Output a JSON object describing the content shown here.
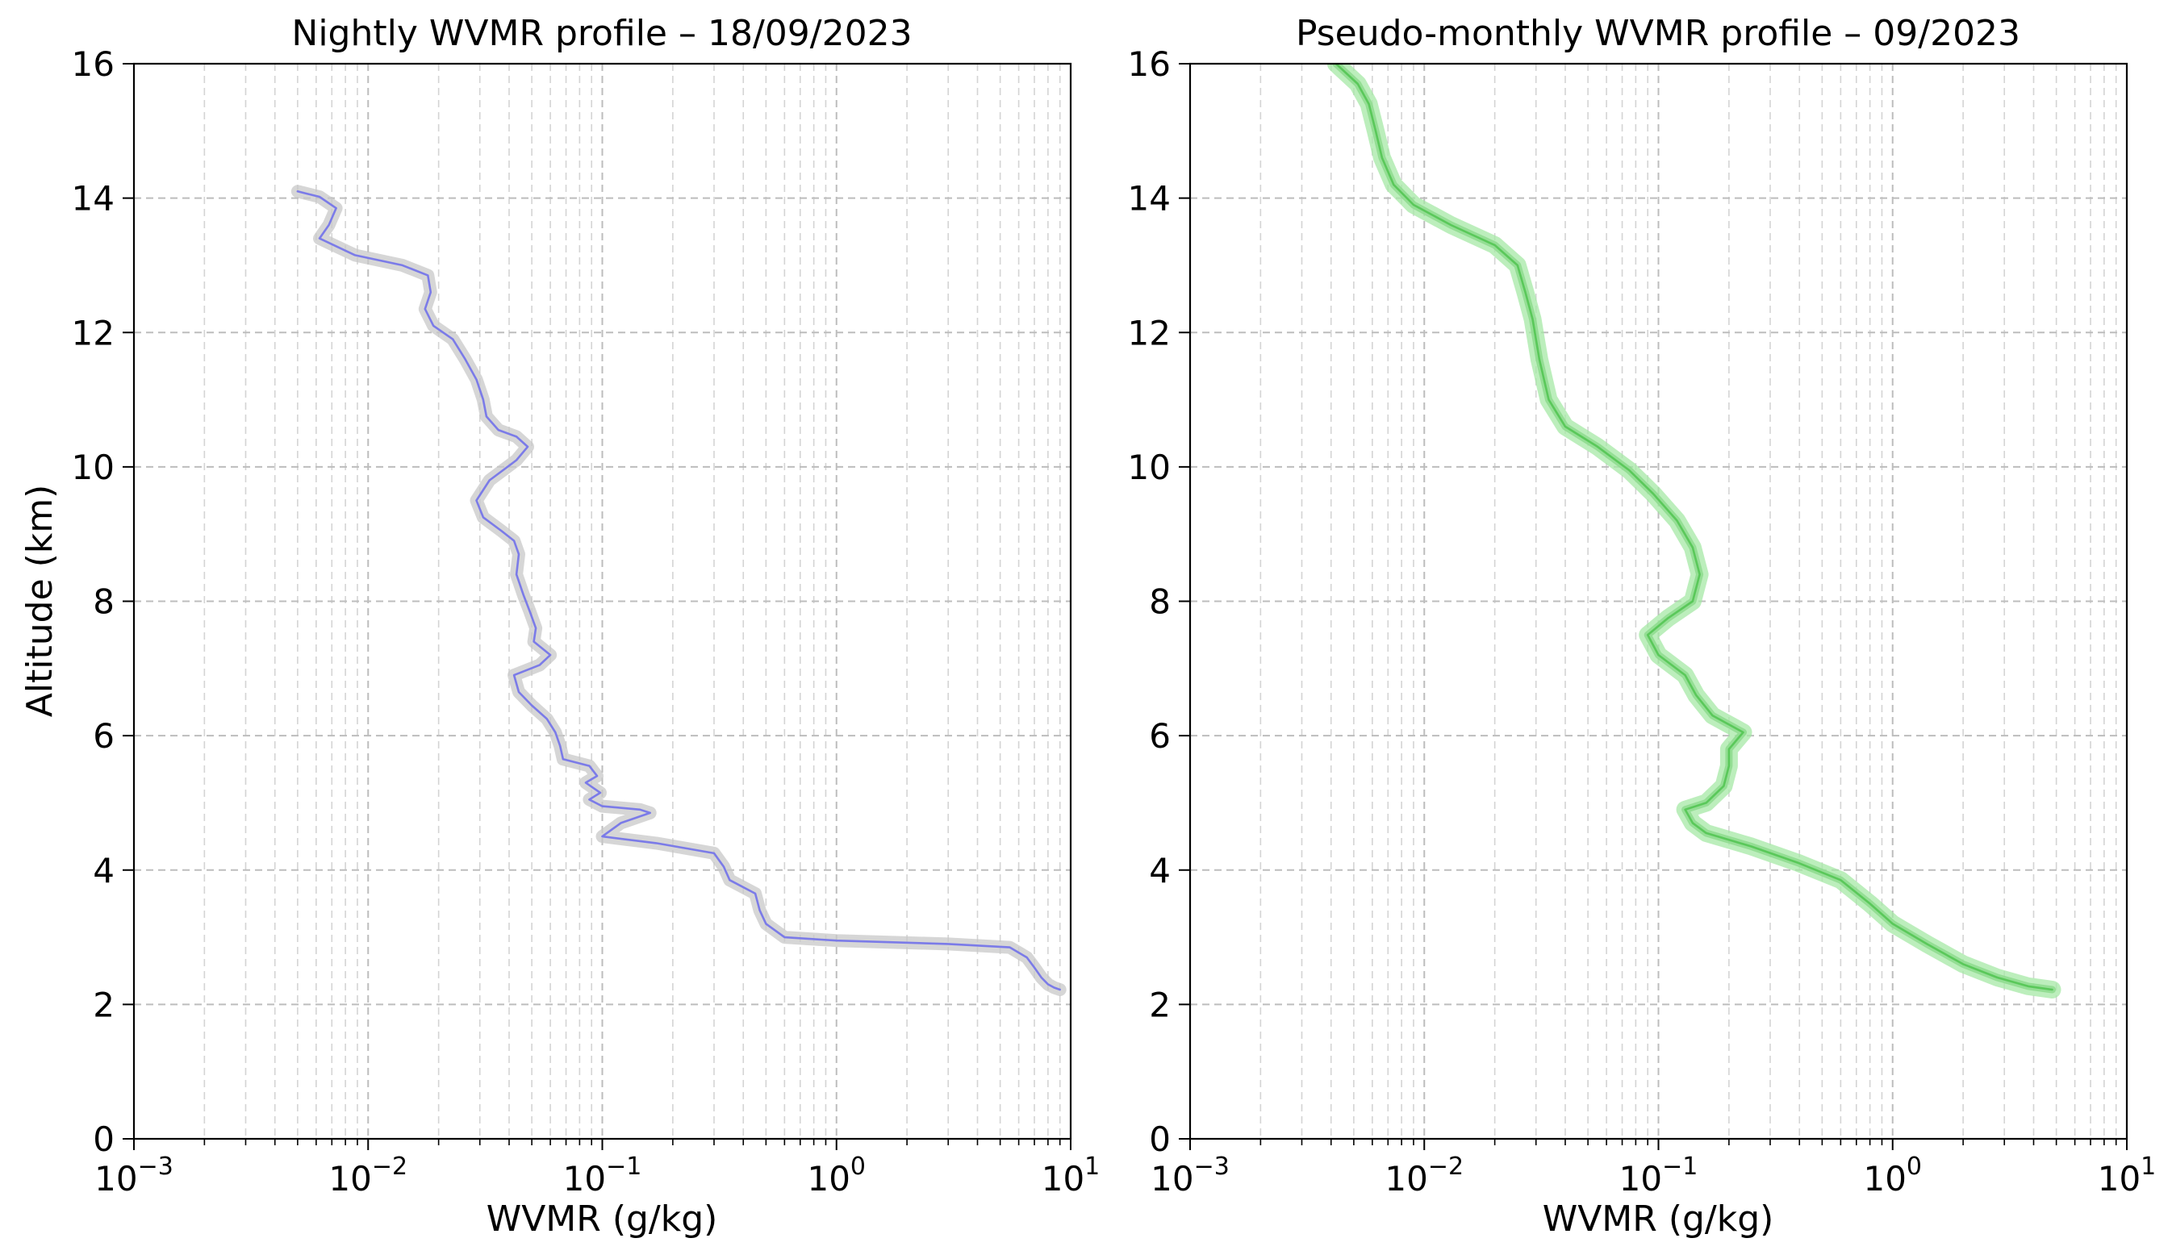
{
  "chart_data": [
    {
      "type": "line",
      "title": "Nightly WVMR profile – 18/09/2023",
      "xlabel": "WVMR (g/kg)",
      "ylabel": "Altitude (km)",
      "xscale": "log",
      "xlim": [
        0.001,
        10
      ],
      "ylim": [
        0,
        16
      ],
      "grid": true,
      "line_color": "#7b7be8",
      "band_color": "#c8c8c8",
      "x_ticks": [
        {
          "base": "10",
          "exp": "−3",
          "value": 0.001
        },
        {
          "base": "10",
          "exp": "−2",
          "value": 0.01
        },
        {
          "base": "10",
          "exp": "−1",
          "value": 0.1
        },
        {
          "base": "10",
          "exp": "0",
          "value": 1
        },
        {
          "base": "10",
          "exp": "1",
          "value": 10
        }
      ],
      "y_ticks": [
        "0",
        "2",
        "4",
        "6",
        "8",
        "10",
        "12",
        "14",
        "16"
      ],
      "series": [
        {
          "name": "nightly",
          "points": [
            [
              0.005,
              14.1
            ],
            [
              0.0062,
              14.02
            ],
            [
              0.0073,
              13.85
            ],
            [
              0.0068,
              13.6
            ],
            [
              0.0062,
              13.4
            ],
            [
              0.0088,
              13.15
            ],
            [
              0.014,
              13.0
            ],
            [
              0.018,
              12.85
            ],
            [
              0.0185,
              12.6
            ],
            [
              0.0175,
              12.35
            ],
            [
              0.019,
              12.1
            ],
            [
              0.023,
              11.9
            ],
            [
              0.026,
              11.6
            ],
            [
              0.029,
              11.3
            ],
            [
              0.031,
              11.0
            ],
            [
              0.032,
              10.75
            ],
            [
              0.036,
              10.55
            ],
            [
              0.043,
              10.45
            ],
            [
              0.048,
              10.3
            ],
            [
              0.043,
              10.1
            ],
            [
              0.033,
              9.8
            ],
            [
              0.029,
              9.5
            ],
            [
              0.031,
              9.25
            ],
            [
              0.037,
              9.05
            ],
            [
              0.042,
              8.9
            ],
            [
              0.044,
              8.7
            ],
            [
              0.043,
              8.4
            ],
            [
              0.046,
              8.1
            ],
            [
              0.049,
              7.85
            ],
            [
              0.052,
              7.6
            ],
            [
              0.051,
              7.4
            ],
            [
              0.06,
              7.2
            ],
            [
              0.054,
              7.05
            ],
            [
              0.042,
              6.9
            ],
            [
              0.044,
              6.65
            ],
            [
              0.05,
              6.45
            ],
            [
              0.058,
              6.25
            ],
            [
              0.063,
              6.05
            ],
            [
              0.066,
              5.85
            ],
            [
              0.068,
              5.65
            ],
            [
              0.088,
              5.55
            ],
            [
              0.095,
              5.4
            ],
            [
              0.085,
              5.3
            ],
            [
              0.098,
              5.15
            ],
            [
              0.088,
              5.05
            ],
            [
              0.1,
              4.95
            ],
            [
              0.145,
              4.9
            ],
            [
              0.16,
              4.85
            ],
            [
              0.12,
              4.7
            ],
            [
              0.1,
              4.5
            ],
            [
              0.17,
              4.4
            ],
            [
              0.3,
              4.25
            ],
            [
              0.33,
              4.05
            ],
            [
              0.35,
              3.85
            ],
            [
              0.45,
              3.65
            ],
            [
              0.47,
              3.4
            ],
            [
              0.5,
              3.2
            ],
            [
              0.6,
              3.0
            ],
            [
              1.0,
              2.95
            ],
            [
              3.0,
              2.9
            ],
            [
              5.5,
              2.85
            ],
            [
              6.5,
              2.7
            ],
            [
              7.0,
              2.55
            ],
            [
              7.5,
              2.4
            ],
            [
              8.0,
              2.3
            ],
            [
              8.5,
              2.25
            ],
            [
              9.0,
              2.22
            ]
          ]
        }
      ]
    },
    {
      "type": "line",
      "title": "Pseudo-monthly WVMR profile – 09/2023",
      "xlabel": "WVMR (g/kg)",
      "ylabel": "",
      "xscale": "log",
      "xlim": [
        0.001,
        10
      ],
      "ylim": [
        0,
        16
      ],
      "grid": true,
      "line_color": "#5ac85a",
      "band_color": "#a6e8a6",
      "x_ticks": [
        {
          "base": "10",
          "exp": "−3",
          "value": 0.001
        },
        {
          "base": "10",
          "exp": "−2",
          "value": 0.01
        },
        {
          "base": "10",
          "exp": "−1",
          "value": 0.1
        },
        {
          "base": "10",
          "exp": "0",
          "value": 1
        },
        {
          "base": "10",
          "exp": "1",
          "value": 10
        }
      ],
      "y_ticks": [
        "0",
        "2",
        "4",
        "6",
        "8",
        "10",
        "12",
        "14",
        "16"
      ],
      "series": [
        {
          "name": "pseudo-monthly",
          "points": [
            [
              0.0042,
              16.0
            ],
            [
              0.0052,
              15.7
            ],
            [
              0.0058,
              15.4
            ],
            [
              0.0062,
              15.0
            ],
            [
              0.0066,
              14.6
            ],
            [
              0.0074,
              14.2
            ],
            [
              0.009,
              13.9
            ],
            [
              0.013,
              13.6
            ],
            [
              0.02,
              13.3
            ],
            [
              0.025,
              13.0
            ],
            [
              0.027,
              12.6
            ],
            [
              0.029,
              12.2
            ],
            [
              0.031,
              11.6
            ],
            [
              0.034,
              11.0
            ],
            [
              0.04,
              10.6
            ],
            [
              0.055,
              10.3
            ],
            [
              0.075,
              9.95
            ],
            [
              0.095,
              9.6
            ],
            [
              0.12,
              9.2
            ],
            [
              0.14,
              8.8
            ],
            [
              0.15,
              8.4
            ],
            [
              0.14,
              8.0
            ],
            [
              0.11,
              7.75
            ],
            [
              0.09,
              7.5
            ],
            [
              0.1,
              7.2
            ],
            [
              0.13,
              6.9
            ],
            [
              0.145,
              6.6
            ],
            [
              0.17,
              6.3
            ],
            [
              0.23,
              6.05
            ],
            [
              0.2,
              5.8
            ],
            [
              0.2,
              5.55
            ],
            [
              0.19,
              5.25
            ],
            [
              0.16,
              5.0
            ],
            [
              0.13,
              4.9
            ],
            [
              0.14,
              4.7
            ],
            [
              0.16,
              4.55
            ],
            [
              0.25,
              4.35
            ],
            [
              0.4,
              4.1
            ],
            [
              0.6,
              3.85
            ],
            [
              0.8,
              3.5
            ],
            [
              1.0,
              3.2
            ],
            [
              1.4,
              2.9
            ],
            [
              2.0,
              2.6
            ],
            [
              2.8,
              2.4
            ],
            [
              3.8,
              2.27
            ],
            [
              4.8,
              2.22
            ]
          ]
        }
      ]
    }
  ]
}
